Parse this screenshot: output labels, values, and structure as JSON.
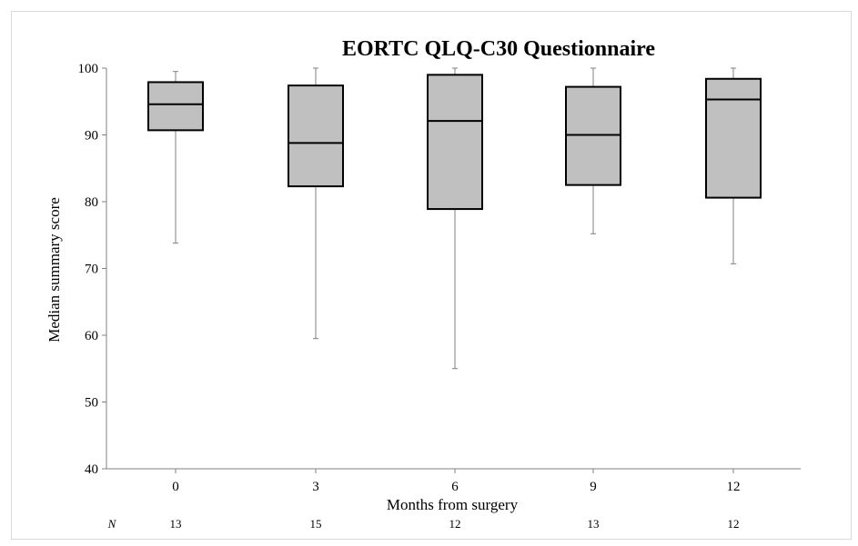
{
  "chart_data": {
    "type": "box",
    "title": "EORTC QLQ-C30 Questionnaire",
    "xlabel": "Months from surgery",
    "ylabel": "Median summary score",
    "ylim": [
      40,
      100
    ],
    "yticks": [
      "40",
      "50",
      "60",
      "70",
      "80",
      "90",
      "100"
    ],
    "grid": false,
    "legend": "none",
    "box_fill": "#c0c0c0",
    "box_stroke": "#000000",
    "whisker_color": "#808080",
    "n_header": "N",
    "categories": [
      "0",
      "3",
      "6",
      "9",
      "12"
    ],
    "boxes": [
      {
        "label": "0",
        "min": 73.8,
        "q1": 90.7,
        "median": 94.6,
        "q3": 97.9,
        "max": 99.5,
        "n": "13"
      },
      {
        "label": "3",
        "min": 59.5,
        "q1": 82.3,
        "median": 88.8,
        "q3": 97.4,
        "max": 100,
        "n": "15"
      },
      {
        "label": "6",
        "min": 55.0,
        "q1": 78.9,
        "median": 92.1,
        "q3": 99.0,
        "max": 100,
        "n": "12"
      },
      {
        "label": "9",
        "min": 75.2,
        "q1": 82.5,
        "median": 90.0,
        "q3": 97.2,
        "max": 100,
        "n": "13"
      },
      {
        "label": "12",
        "min": 70.7,
        "q1": 80.6,
        "median": 95.3,
        "q3": 98.4,
        "max": 100,
        "n": "12"
      }
    ]
  }
}
